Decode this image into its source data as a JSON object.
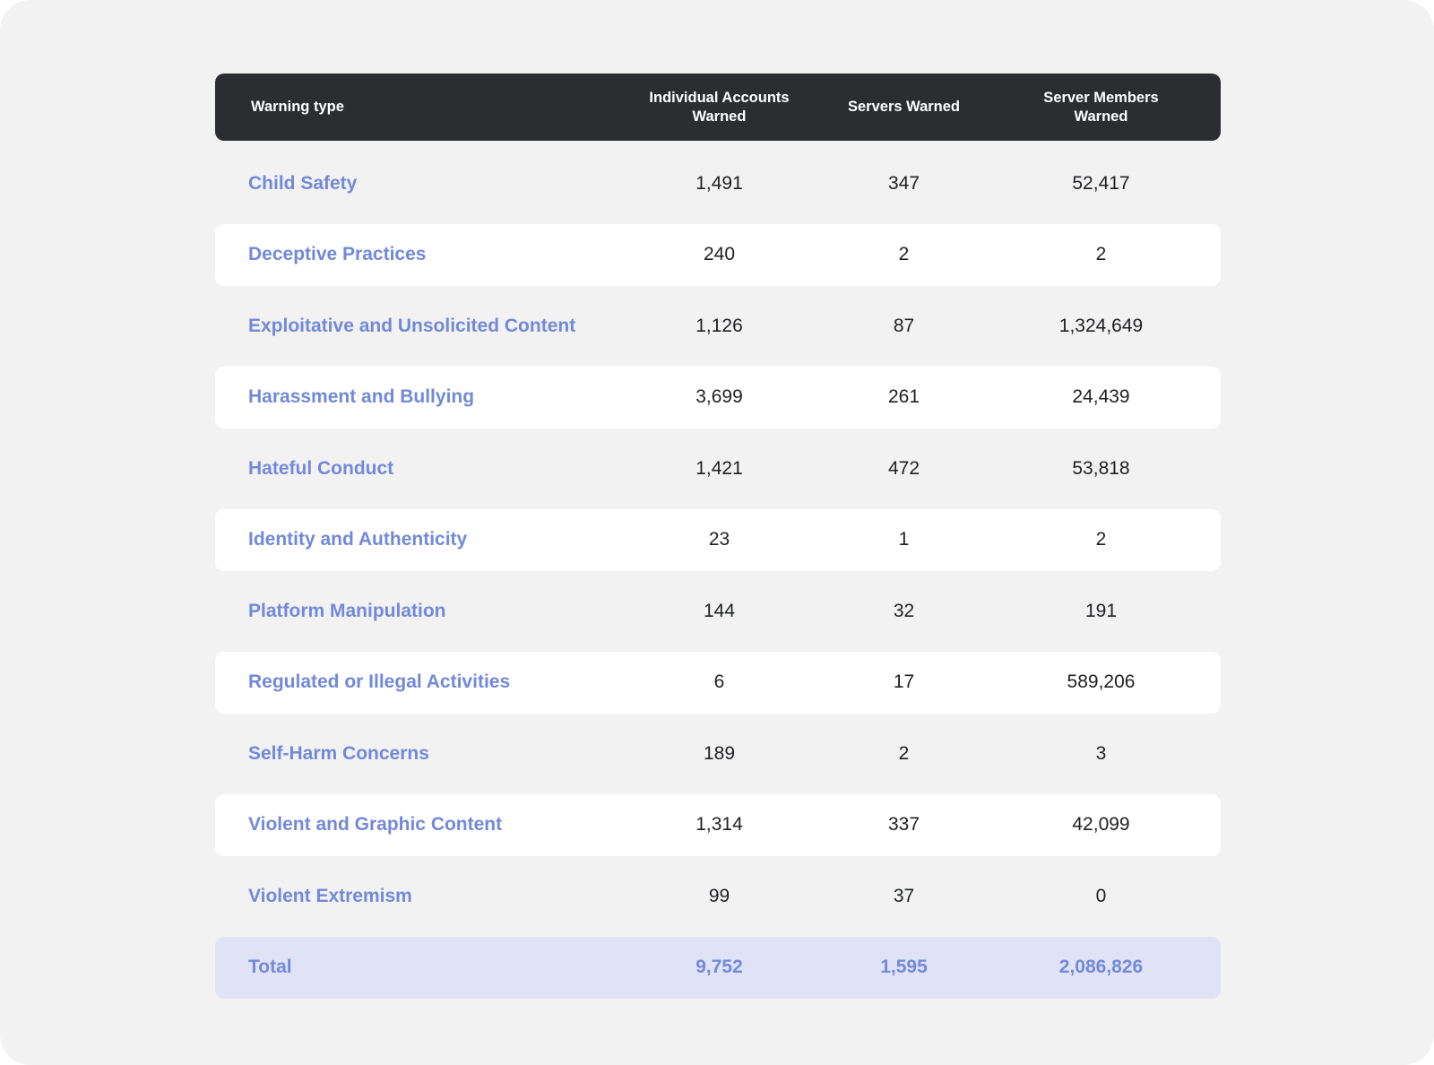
{
  "chart_data": {
    "type": "table",
    "columns": [
      "Warning type",
      "Individual Accounts\nWarned",
      "Servers Warned",
      "Server Members\nWarned"
    ],
    "rows": [
      {
        "type": "Child Safety",
        "accounts": "1,491",
        "servers": "347",
        "members": "52,417"
      },
      {
        "type": "Deceptive Practices",
        "accounts": "240",
        "servers": "2",
        "members": "2"
      },
      {
        "type": "Exploitative and Unsolicited Content",
        "accounts": "1,126",
        "servers": "87",
        "members": "1,324,649"
      },
      {
        "type": "Harassment and Bullying",
        "accounts": "3,699",
        "servers": "261",
        "members": "24,439"
      },
      {
        "type": "Hateful Conduct",
        "accounts": "1,421",
        "servers": "472",
        "members": "53,818"
      },
      {
        "type": "Identity and Authenticity",
        "accounts": "23",
        "servers": "1",
        "members": "2"
      },
      {
        "type": "Platform Manipulation",
        "accounts": "144",
        "servers": "32",
        "members": "191"
      },
      {
        "type": "Regulated or Illegal Activities",
        "accounts": "6",
        "servers": "17",
        "members": "589,206"
      },
      {
        "type": "Self-Harm Concerns",
        "accounts": "189",
        "servers": "2",
        "members": "3"
      },
      {
        "type": "Violent and Graphic Content",
        "accounts": "1,314",
        "servers": "337",
        "members": "42,099"
      },
      {
        "type": "Violent Extremism",
        "accounts": "99",
        "servers": "37",
        "members": "0"
      }
    ],
    "total": {
      "type": "Total",
      "accounts": "9,752",
      "servers": "1,595",
      "members": "2,086,826"
    }
  },
  "colors": {
    "header_bg": "#2b2d31",
    "label": "#7289da",
    "alt_row": "#ffffff",
    "total_row": "#e0e3f5",
    "background": "#f2f2f2"
  }
}
